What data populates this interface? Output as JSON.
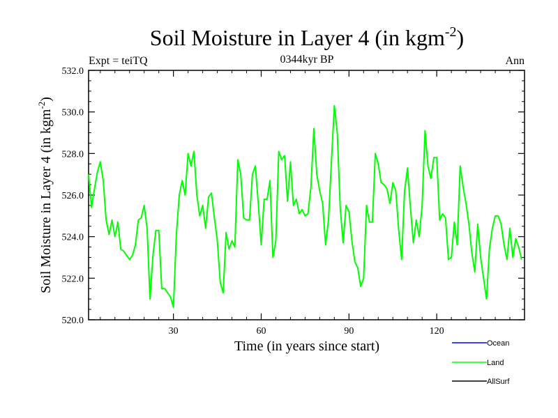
{
  "chart_data": {
    "type": "line",
    "title_main": "Soil Moisture in Layer 4 (in kgm",
    "title_sup": "-2",
    "title_close": ")",
    "subtitle": "0344kyr BP",
    "left_label": "Expt = teiTQ",
    "right_label": "Ann",
    "xlabel": "Time (in years since start)",
    "ylabel_main": "Soil Moisture in Layer 4 (in kgm",
    "ylabel_sup": "-2",
    "ylabel_close": ")",
    "xlim": [
      1,
      150
    ],
    "ylim": [
      520.0,
      532.0
    ],
    "x_ticks": [
      30,
      60,
      90,
      120
    ],
    "x_tick_labels": [
      "30",
      "60",
      "90",
      "120"
    ],
    "y_ticks": [
      520.0,
      522.0,
      524.0,
      526.0,
      528.0,
      530.0,
      532.0
    ],
    "y_tick_labels": [
      "520.0",
      "522.0",
      "524.0",
      "526.0",
      "528.0",
      "530.0",
      "532.0"
    ],
    "legend": [
      {
        "name": "Ocean",
        "color": "#0000ff"
      },
      {
        "name": "Land",
        "color": "#00ff00"
      },
      {
        "name": "AllSurf",
        "color": "#000000"
      }
    ],
    "series": [
      {
        "name": "Land",
        "color": "#00ff00",
        "x_start": 1,
        "x_step": 1,
        "values": [
          527.0,
          525.4,
          526.3,
          527.1,
          527.6,
          526.7,
          524.8,
          524.1,
          524.8,
          524.0,
          524.7,
          523.4,
          523.3,
          523.1,
          522.9,
          523.1,
          523.6,
          524.8,
          524.9,
          525.5,
          524.4,
          521.0,
          523.1,
          524.3,
          524.3,
          521.5,
          521.5,
          521.3,
          521.1,
          520.6,
          524.1,
          526.0,
          526.7,
          526.0,
          528.0,
          527.4,
          528.1,
          526.0,
          525.0,
          525.5,
          524.4,
          525.9,
          526.1,
          524.9,
          523.8,
          521.8,
          521.3,
          524.2,
          523.4,
          523.8,
          523.5,
          527.7,
          527.0,
          524.9,
          524.8,
          524.8,
          527.0,
          527.4,
          525.6,
          523.6,
          525.8,
          525.8,
          526.7,
          523.0,
          523.8,
          528.1,
          527.7,
          527.9,
          525.7,
          527.6,
          525.5,
          525.8,
          525.1,
          525.3,
          525.0,
          525.1,
          526.4,
          529.2,
          527.0,
          526.2,
          525.6,
          523.6,
          524.8,
          527.6,
          530.3,
          529.0,
          525.4,
          523.7,
          525.5,
          525.2,
          523.8,
          522.8,
          522.5,
          521.6,
          522.0,
          525.5,
          524.7,
          524.7,
          528.0,
          527.5,
          526.6,
          526.5,
          526.3,
          525.6,
          526.6,
          526.2,
          524.3,
          522.9,
          526.2,
          527.3,
          525.4,
          523.7,
          524.8,
          524.0,
          525.5,
          529.1,
          527.4,
          526.8,
          527.8,
          527.8,
          524.8,
          525.1,
          524.9,
          522.9,
          523.0,
          524.7,
          523.6,
          527.4,
          526.4,
          525.6,
          524.6,
          523.2,
          522.3,
          524.6,
          523.0,
          522.0,
          521.0,
          523.4,
          524.4,
          525.0,
          525.0,
          524.6,
          523.6,
          522.9,
          524.4,
          523.0,
          523.9,
          523.5,
          522.9
        ]
      }
    ]
  }
}
